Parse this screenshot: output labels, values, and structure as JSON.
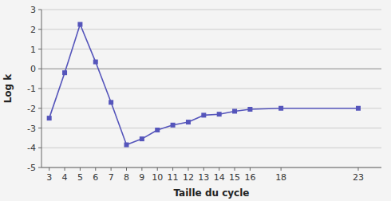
{
  "chart_data": {
    "type": "line",
    "x": [
      3,
      4,
      5,
      6,
      7,
      8,
      9,
      10,
      11,
      12,
      13,
      14,
      15,
      16,
      18,
      23
    ],
    "values": [
      -2.5,
      -0.2,
      2.25,
      0.35,
      -1.7,
      -3.85,
      -3.55,
      -3.1,
      -2.85,
      -2.7,
      -2.35,
      -2.3,
      -2.15,
      -2.05,
      -2.0,
      -2.0
    ],
    "color": "#5555bb",
    "marker": "square",
    "xlabel": "Taille du cycle",
    "ylabel": "Log k",
    "xlim": [
      2.5,
      24.5
    ],
    "ylim": [
      -5,
      3
    ],
    "xticks": [
      3,
      4,
      5,
      6,
      7,
      8,
      9,
      10,
      11,
      12,
      13,
      14,
      15,
      16,
      18,
      23
    ],
    "yticks": [
      -5,
      -4,
      -3,
      -2,
      -1,
      0,
      1,
      2,
      3
    ],
    "grid": true
  }
}
